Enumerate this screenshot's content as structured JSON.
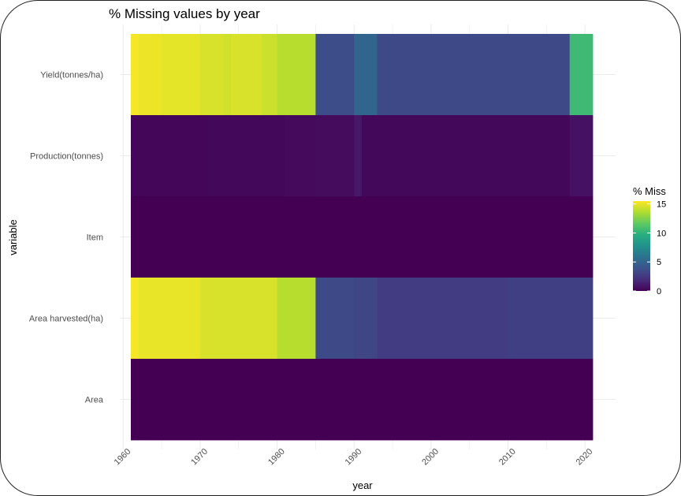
{
  "chart_data": {
    "type": "heatmap",
    "title": "% Missing values by year",
    "xlabel": "year",
    "ylabel": "variable",
    "xlim": [
      1960,
      2020
    ],
    "x_ticks": [
      1960,
      1970,
      1980,
      1990,
      2000,
      2010,
      2020
    ],
    "y_categories_top_to_bottom": [
      "Yield(tonnes/ha)",
      "Production(tonnes)",
      "Item",
      "Area harvested(ha)",
      "Area"
    ],
    "years": [
      1961,
      2020
    ],
    "grid": true,
    "legend": {
      "title": "% Miss",
      "ticks": [
        0,
        5,
        10,
        15
      ],
      "range": [
        0,
        15.5
      ],
      "colormap": "viridis",
      "placement": "right"
    },
    "rows": [
      {
        "variable": "Yield(tonnes/ha)",
        "segments": [
          {
            "start": 1961,
            "end": 1961,
            "value": 15.3
          },
          {
            "start": 1962,
            "end": 1964,
            "value": 15.1
          },
          {
            "start": 1965,
            "end": 1969,
            "value": 14.9
          },
          {
            "start": 1970,
            "end": 1972,
            "value": 14.6
          },
          {
            "start": 1973,
            "end": 1973,
            "value": 14.4
          },
          {
            "start": 1974,
            "end": 1977,
            "value": 14.6
          },
          {
            "start": 1978,
            "end": 1979,
            "value": 14.3
          },
          {
            "start": 1980,
            "end": 1984,
            "value": 13.8
          },
          {
            "start": 1985,
            "end": 1989,
            "value": 3.6
          },
          {
            "start": 1990,
            "end": 1992,
            "value": 5.0
          },
          {
            "start": 1993,
            "end": 2017,
            "value": 3.4
          },
          {
            "start": 2018,
            "end": 2020,
            "value": 10.5
          }
        ]
      },
      {
        "variable": "Production(tonnes)",
        "segments": [
          {
            "start": 1961,
            "end": 1970,
            "value": 0.2
          },
          {
            "start": 1971,
            "end": 1980,
            "value": 0.3
          },
          {
            "start": 1981,
            "end": 1984,
            "value": 0.4
          },
          {
            "start": 1985,
            "end": 1989,
            "value": 0.5
          },
          {
            "start": 1990,
            "end": 1990,
            "value": 1.0
          },
          {
            "start": 1991,
            "end": 2017,
            "value": 0.3
          },
          {
            "start": 2018,
            "end": 2020,
            "value": 0.7
          }
        ]
      },
      {
        "variable": "Item",
        "segments": [
          {
            "start": 1961,
            "end": 2020,
            "value": 0
          }
        ]
      },
      {
        "variable": "Area harvested(ha)",
        "segments": [
          {
            "start": 1961,
            "end": 1961,
            "value": 15.3
          },
          {
            "start": 1962,
            "end": 1969,
            "value": 15.0
          },
          {
            "start": 1970,
            "end": 1979,
            "value": 14.6
          },
          {
            "start": 1980,
            "end": 1984,
            "value": 13.8
          },
          {
            "start": 1985,
            "end": 1989,
            "value": 3.4
          },
          {
            "start": 1990,
            "end": 1992,
            "value": 3.2
          },
          {
            "start": 1993,
            "end": 2009,
            "value": 2.8
          },
          {
            "start": 2010,
            "end": 2020,
            "value": 2.9
          }
        ]
      },
      {
        "variable": "Area",
        "segments": [
          {
            "start": 1961,
            "end": 2020,
            "value": 0
          }
        ]
      }
    ]
  }
}
